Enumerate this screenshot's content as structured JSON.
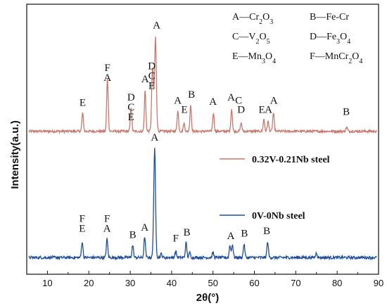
{
  "chart_data": {
    "type": "line",
    "xlabel": "2θ(°)",
    "ylabel": "Intensity(a.u.)",
    "xlim": [
      5,
      90
    ],
    "xticks": [
      10,
      20,
      30,
      40,
      50,
      60,
      70,
      80,
      90
    ],
    "phase_key": [
      {
        "letter": "A",
        "compound": "Cr",
        "sub": "2",
        "compound2": "O",
        "sub2": "3"
      },
      {
        "letter": "B",
        "compound": "Fe-Cr",
        "sub": "",
        "compound2": "",
        "sub2": ""
      },
      {
        "letter": "C",
        "compound": "V",
        "sub": "2",
        "compound2": "O",
        "sub2": "5"
      },
      {
        "letter": "D",
        "compound": "Fe",
        "sub": "3",
        "compound2": "O",
        "sub2": "4"
      },
      {
        "letter": "E",
        "compound": "Mn",
        "sub": "3",
        "compound2": "O",
        "sub2": "4"
      },
      {
        "letter": "F",
        "compound": "MnCr",
        "sub": "2",
        "compound2": "O",
        "sub2": "4"
      }
    ],
    "series": [
      {
        "name": "0.32V-0.21Nb steel",
        "color": "#c8786e",
        "baseline": 0.7,
        "peaks": [
          {
            "x": 18.5,
            "h": 0.9
          },
          {
            "x": 24.5,
            "h": 2.6
          },
          {
            "x": 30.2,
            "h": 1.2
          },
          {
            "x": 33.6,
            "h": 2.0
          },
          {
            "x": 35.4,
            "h": 3.1
          },
          {
            "x": 36.1,
            "h": 4.6
          },
          {
            "x": 41.5,
            "h": 1.0
          },
          {
            "x": 43.0,
            "h": 0.4
          },
          {
            "x": 44.6,
            "h": 1.3
          },
          {
            "x": 50.1,
            "h": 0.9
          },
          {
            "x": 54.5,
            "h": 1.1
          },
          {
            "x": 56.8,
            "h": 0.4
          },
          {
            "x": 62.3,
            "h": 0.6
          },
          {
            "x": 63.3,
            "h": 0.5
          },
          {
            "x": 64.6,
            "h": 0.9
          },
          {
            "x": 82.3,
            "h": 0.2
          }
        ],
        "peak_labels": [
          {
            "x": 18.5,
            "text": [
              "E"
            ],
            "y": 1.95
          },
          {
            "x": 24.5,
            "text": [
              "F",
              "A"
            ],
            "y": 3.65
          },
          {
            "x": 30.2,
            "text": [
              "D",
              "C",
              "E"
            ],
            "y": 2.2
          },
          {
            "x": 33.6,
            "text": [
              "A"
            ],
            "y": 3.1
          },
          {
            "x": 35.2,
            "text": [
              "D",
              "C",
              "E"
            ],
            "y": 3.75
          },
          {
            "x": 36.4,
            "text": [
              "A"
            ],
            "y": 5.75
          },
          {
            "x": 41.5,
            "text": [
              "A"
            ],
            "y": 2.05
          },
          {
            "x": 43.1,
            "text": [
              "E"
            ],
            "y": 1.6
          },
          {
            "x": 44.8,
            "text": [
              "B"
            ],
            "y": 2.35
          },
          {
            "x": 50.0,
            "text": [
              "A"
            ],
            "y": 2.0
          },
          {
            "x": 54.4,
            "text": [
              "A"
            ],
            "y": 2.2
          },
          {
            "x": 56.2,
            "text": [
              "C"
            ],
            "y": 2.05
          },
          {
            "x": 56.8,
            "text": [
              "D"
            ],
            "y": 1.6
          },
          {
            "x": 61.8,
            "text": [
              "E"
            ],
            "y": 1.6
          },
          {
            "x": 63.4,
            "text": [
              "A"
            ],
            "y": 1.6
          },
          {
            "x": 64.7,
            "text": [
              "A"
            ],
            "y": 2.05
          },
          {
            "x": 82.2,
            "text": [
              "B"
            ],
            "y": 1.5
          }
        ]
      },
      {
        "name": "0V-0Nb steel",
        "color": "#1f4e9c",
        "baseline": 0.25,
        "peaks": [
          {
            "x": 18.4,
            "h": 0.65
          },
          {
            "x": 24.4,
            "h": 0.75
          },
          {
            "x": 30.6,
            "h": 0.5
          },
          {
            "x": 33.5,
            "h": 0.85
          },
          {
            "x": 35.9,
            "h": 4.4
          },
          {
            "x": 37.5,
            "h": 0.15
          },
          {
            "x": 41.0,
            "h": 0.25
          },
          {
            "x": 43.5,
            "h": 0.6
          },
          {
            "x": 44.4,
            "h": 0.2
          },
          {
            "x": 50.0,
            "h": 0.2
          },
          {
            "x": 54.1,
            "h": 0.5
          },
          {
            "x": 54.7,
            "h": 0.55
          },
          {
            "x": 57.5,
            "h": 0.55
          },
          {
            "x": 63.2,
            "h": 0.65
          },
          {
            "x": 75.0,
            "h": 0.2
          }
        ],
        "peak_labels": [
          {
            "x": 18.4,
            "text": [
              "F",
              "E"
            ],
            "y": 1.7
          },
          {
            "x": 24.4,
            "text": [
              "F",
              "A"
            ],
            "y": 1.7
          },
          {
            "x": 30.6,
            "text": [
              "B"
            ],
            "y": 1.05
          },
          {
            "x": 33.5,
            "text": [
              "A"
            ],
            "y": 1.35
          },
          {
            "x": 35.9,
            "text": [
              "A"
            ],
            "y": 5.0
          },
          {
            "x": 41.0,
            "text": [
              "F"
            ],
            "y": 0.9
          },
          {
            "x": 43.7,
            "text": [
              "B"
            ],
            "y": 1.15
          },
          {
            "x": 54.3,
            "text": [
              "A"
            ],
            "y": 1.0
          },
          {
            "x": 57.6,
            "text": [
              "B"
            ],
            "y": 1.1
          },
          {
            "x": 63.0,
            "text": [
              "B"
            ],
            "y": 1.2
          }
        ]
      }
    ]
  }
}
